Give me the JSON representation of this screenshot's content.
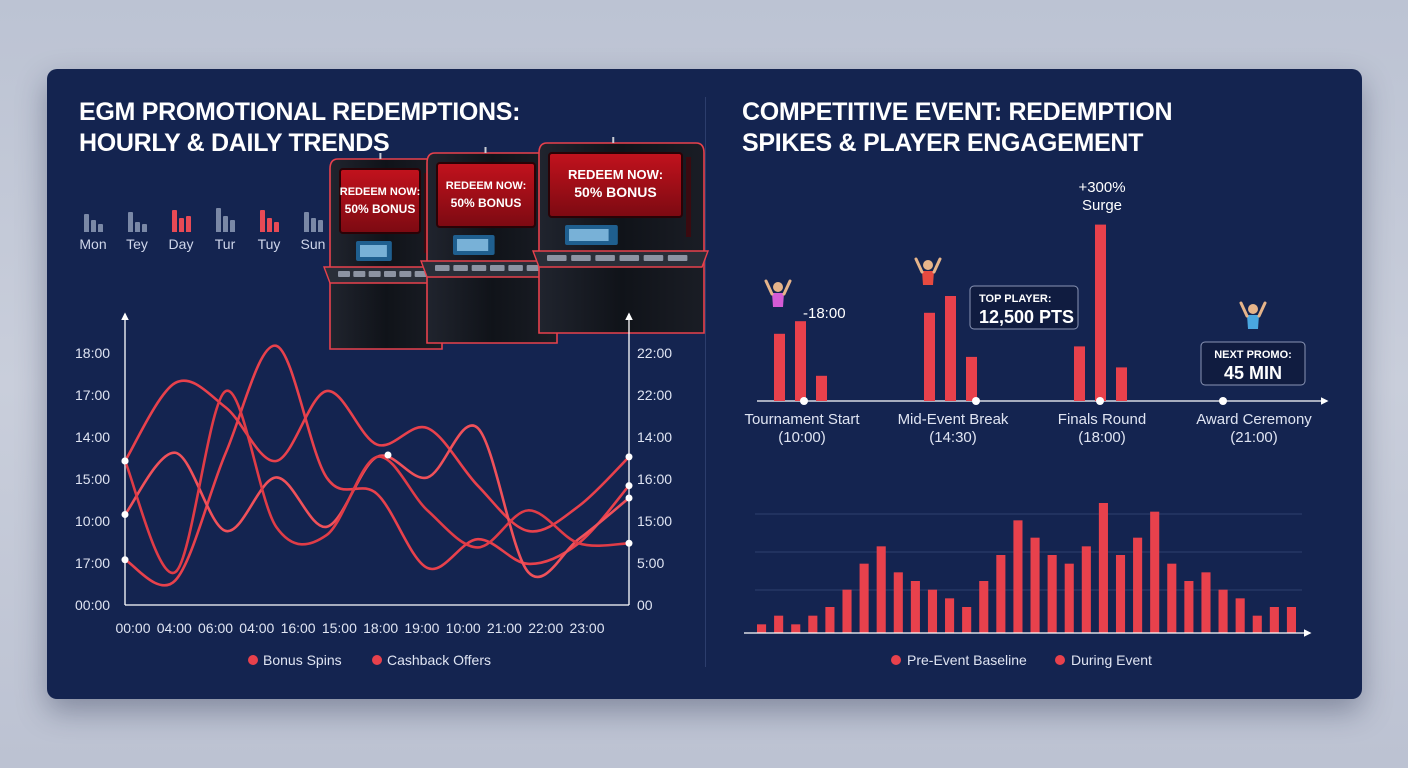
{
  "left_panel": {
    "title_lines": [
      "EGM PROMOTIONAL REDEMPTIONS:",
      "HOURLY & DAILY TRENDS"
    ],
    "day_icons": [
      {
        "label": "Mon",
        "color": "#7a88a6"
      },
      {
        "label": "Tey",
        "color": "#7a88a6"
      },
      {
        "label": "Day",
        "color": "#e84a55"
      },
      {
        "label": "Tur",
        "color": "#7a88a6"
      },
      {
        "label": "Tuy",
        "color": "#e84a55"
      },
      {
        "label": "Sun",
        "color": "#7a88a6"
      }
    ],
    "machine_screen_text": [
      "REDEEM NOW:",
      "50% BONUS"
    ]
  },
  "right_panel": {
    "title_lines": [
      "COMPETITIVE EVENT: REDEMPTION",
      "SPIKES & PLAYER ENGAGEMENT"
    ],
    "surge_label": [
      "+300%",
      "Surge"
    ],
    "time_marker": "-18:00",
    "top_player_box": {
      "heading": "TOP PLAYER:",
      "value": "12,500 PTS"
    },
    "next_promo_box": {
      "heading": "NEXT PROMO:",
      "value": "45 MIN"
    }
  },
  "colors": {
    "accent": "#e8414c",
    "panel": "#142450",
    "text": "#ffffff"
  },
  "chart_data": [
    {
      "type": "line",
      "title": "EGM PROMOTIONAL REDEMPTIONS: HOURLY & DAILY TRENDS",
      "x_tick_labels": [
        "00:00",
        "04:00",
        "06:00",
        "04:00",
        "16:00",
        "15:00",
        "18:00",
        "19:00",
        "10:00",
        "21:00",
        "22:00",
        "23:00"
      ],
      "y_left_tick_labels": [
        "18:00",
        "17:00",
        "14:00",
        "15:00",
        "10:00",
        "17:00",
        "00:00"
      ],
      "y_right_tick_labels": [
        "22:00",
        "22:00",
        "14:00",
        "16:00",
        "15:00",
        "5:00",
        "00"
      ],
      "legend": [
        "Bonus Spins",
        "Cashback Offers"
      ],
      "legend_position": "bottom",
      "series": [
        {
          "name": "Bonus Spins",
          "values": [
            1.1,
            0.6,
            3.7,
            6.3,
            3.1,
            2.7,
            0.9,
            1.6,
            1.0,
            1.5,
            2.9
          ]
        },
        {
          "name": "Cashback Offers",
          "values": [
            3.5,
            5.4,
            4.8,
            3.5,
            5.2,
            3.9,
            4.3,
            2.9,
            1.8,
            2.4,
            3.6
          ]
        },
        {
          "name": "Cashback Offers",
          "values": [
            2.2,
            3.7,
            1.8,
            3.1,
            1.9,
            3.6,
            3.1,
            4.3,
            0.8,
            1.6,
            2.6
          ]
        },
        {
          "name": "Bonus Spins",
          "values": [
            3.5,
            0.8,
            5.2,
            1.9,
            1.7,
            3.6,
            2.3,
            1.4,
            2.3,
            1.5,
            1.5
          ]
        }
      ]
    },
    {
      "type": "bar",
      "title": "COMPETITIVE EVENT: REDEMPTION SPIKES & PLAYER ENGAGEMENT",
      "events": [
        {
          "name": "Tournament Start",
          "time": "(10:00)",
          "values": [
            3.2,
            3.8,
            1.2
          ]
        },
        {
          "name": "Mid-Event Break",
          "time": "(14:30)",
          "values": [
            4.2,
            5.0,
            2.1
          ]
        },
        {
          "name": "Finals Round",
          "time": "(18:00)",
          "values": [
            2.6,
            8.4,
            1.6
          ]
        },
        {
          "name": "Award Ceremony",
          "time": "(21:00)",
          "values": []
        }
      ]
    },
    {
      "type": "bar",
      "legend": [
        "Pre-Event Baseline",
        "During Event"
      ],
      "legend_position": "bottom",
      "values": [
        1,
        2,
        1,
        2,
        3,
        5,
        8,
        10,
        7,
        6,
        5,
        4,
        3,
        6,
        9,
        13,
        11,
        9,
        8,
        10,
        15,
        9,
        11,
        14,
        8,
        6,
        7,
        5,
        4,
        2,
        3,
        3
      ],
      "ylim": [
        0,
        18
      ]
    }
  ]
}
